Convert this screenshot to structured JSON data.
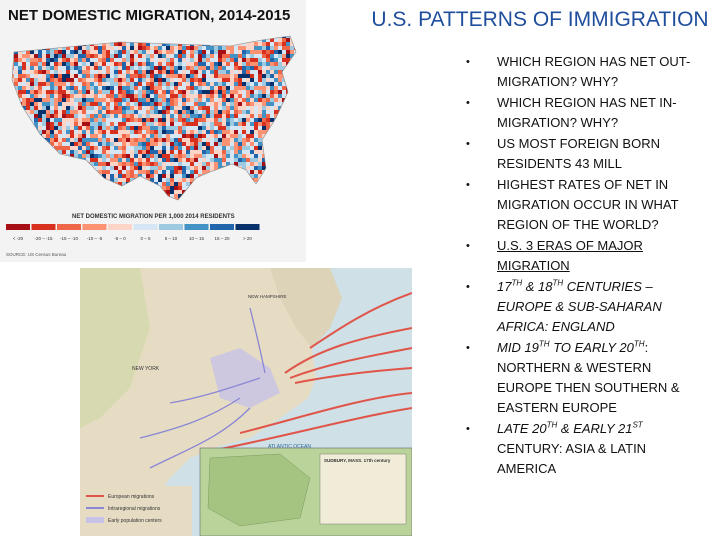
{
  "slide": {
    "title": "U.S. PATTERNS OF IMMIGRATION",
    "bullets": [
      [
        {
          "text": "WHICH REGION HAS NET OUT-MIGRATION? WHY?"
        }
      ],
      [
        {
          "text": "WHICH REGION HAS NET IN-MIGRATION? WHY?"
        }
      ],
      [
        {
          "text": "US MOST FOREIGN BORN RESIDENTS 43 MILL"
        }
      ],
      [
        {
          "text": "HIGHEST RATES OF NET IN MIGRATION OCCUR IN WHAT REGION OF THE WORLD?"
        }
      ],
      [
        {
          "text": "U.S. 3 ERAS OF MAJOR MIGRATION",
          "underline": true
        }
      ],
      [
        {
          "text": "17",
          "italic": true
        },
        {
          "text": "TH",
          "italic": true,
          "sup": true
        },
        {
          "text": " & 18",
          "italic": true
        },
        {
          "text": "TH",
          "italic": true,
          "sup": true
        },
        {
          "text": " CENTURIES – EUROPE & SUB-SAHARAN AFRICA: ENGLAND",
          "italic": true
        }
      ],
      [
        {
          "text": "MID 19",
          "italic": true
        },
        {
          "text": "TH",
          "italic": true,
          "sup": true
        },
        {
          "text": " TO EARLY 20",
          "italic": true
        },
        {
          "text": "TH",
          "italic": true,
          "sup": true
        },
        {
          "text": ": NORTHERN & WESTERN EUROPE THEN SOUTHERN & EASTERN EUROPE"
        }
      ],
      [
        {
          "text": "LATE 20",
          "italic": true
        },
        {
          "text": "TH",
          "italic": true,
          "sup": true
        },
        {
          "text": " & EARLY 21",
          "italic": true
        },
        {
          "text": "ST",
          "italic": true,
          "sup": true
        },
        {
          "text": " CENTURY: ASIA & LATIN AMERICA"
        }
      ]
    ]
  },
  "map1": {
    "title": "NET DOMESTIC MIGRATION, 2014-2015",
    "legend_title": "NET DOMESTIC MIGRATION PER 1,000 2014 RESIDENTS",
    "legend": [
      "< -20",
      "-20 – -15",
      "-15 – -10",
      "-10 – -5",
      "-5 – 0",
      "0 – 5",
      "5 – 10",
      "10 – 15",
      "15 – 20",
      "> 20"
    ],
    "source": "SOURCE: US Census Bureau"
  },
  "map2": {
    "labels": [
      "NEW YORK",
      "ATLANTIC OCEAN",
      "NEW HAMPSHIRE"
    ],
    "inset_title": "SUDBURY, MASS. 17th century",
    "legend": [
      "European migrations",
      "Intraregional migrations",
      "Early population centers"
    ]
  }
}
